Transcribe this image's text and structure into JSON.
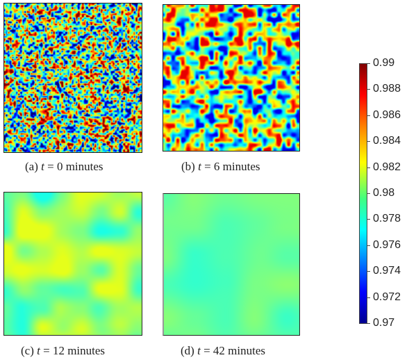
{
  "panels": [
    {
      "id": "a",
      "prefix": "(a) ",
      "var": "t",
      "suffix": " = 0 minutes",
      "field_value_range": [
        0.97,
        0.99
      ]
    },
    {
      "id": "b",
      "prefix": "(b) ",
      "var": "t",
      "suffix": " = 6 minutes",
      "field_value_range": [
        0.972,
        0.988
      ]
    },
    {
      "id": "c",
      "prefix": "(c) ",
      "var": "t",
      "suffix": " = 12 minutes",
      "field_value_range": [
        0.978,
        0.982
      ]
    },
    {
      "id": "d",
      "prefix": "(d) ",
      "var": "t",
      "suffix": " = 42 minutes",
      "field_value_range": [
        0.9785,
        0.9805
      ]
    }
  ],
  "colorbar": {
    "min": 0.97,
    "max": 0.99,
    "ticks": [
      "0.99",
      "0.988",
      "0.986",
      "0.984",
      "0.982",
      "0.98",
      "0.978",
      "0.976",
      "0.974",
      "0.972",
      "0.97"
    ],
    "colormap": "jet"
  }
}
